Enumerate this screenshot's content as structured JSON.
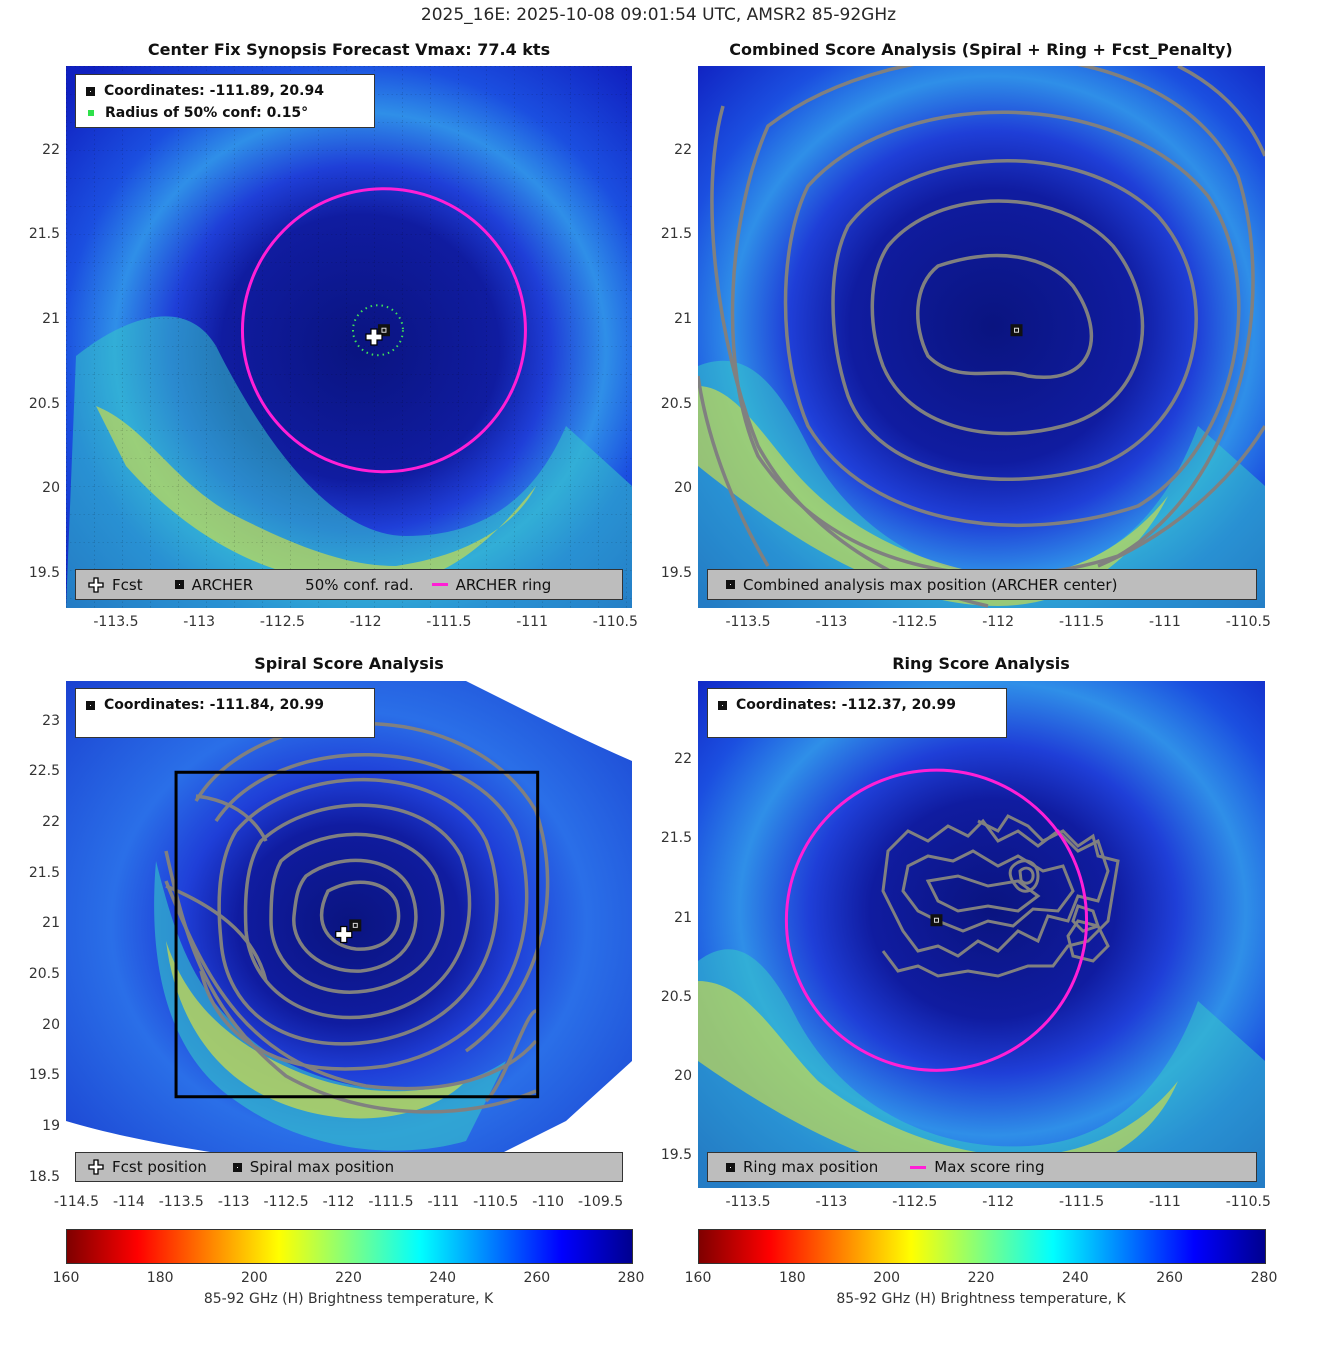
{
  "figure_title": "2025_16E: 2025-10-08 09:01:54 UTC, AMSR2 85-92GHz",
  "panels": {
    "synopsis": {
      "title": "Center Fix Synopsis     Forecast Vmax: 77.4 kts",
      "coords_label": "Coordinates: -111.89, 20.94",
      "radius_label": "Radius of 50% conf: 0.15°",
      "legend": {
        "fcst": "Fcst",
        "archer": "ARCHER",
        "conf": "50% conf. rad.",
        "ring": "ARCHER ring"
      },
      "x_ticks": [
        "-113.5",
        "-113",
        "-112.5",
        "-112",
        "-111.5",
        "-111",
        "-110.5"
      ],
      "y_ticks": [
        "22",
        "21.5",
        "21",
        "20.5",
        "20",
        "19.5"
      ]
    },
    "combined": {
      "title": "Combined Score Analysis (Spiral + Ring + Fcst_Penalty)",
      "legend": {
        "max": "Combined analysis max position (ARCHER center)"
      },
      "x_ticks": [
        "-113.5",
        "-113",
        "-112.5",
        "-112",
        "-111.5",
        "-111",
        "-110.5"
      ],
      "y_ticks": [
        "22",
        "21.5",
        "21",
        "20.5",
        "20",
        "19.5"
      ]
    },
    "spiral": {
      "title": "Spiral Score Analysis",
      "coords_label": "Coordinates: -111.84, 20.99",
      "legend": {
        "fcst": "Fcst position",
        "max": "Spiral max position"
      },
      "x_ticks": [
        "-114.5",
        "-114",
        "-113.5",
        "-113",
        "-112.5",
        "-112",
        "-111.5",
        "-111",
        "-110.5",
        "-110",
        "-109.5"
      ],
      "y_ticks": [
        "23",
        "22.5",
        "22",
        "21.5",
        "21",
        "20.5",
        "20",
        "19.5",
        "19",
        "18.5"
      ]
    },
    "ring": {
      "title": "Ring Score Analysis",
      "coords_label": "Coordinates: -112.37, 20.99",
      "legend": {
        "max": "Ring max position",
        "ring": "Max score ring"
      },
      "x_ticks": [
        "-113.5",
        "-113",
        "-112.5",
        "-112",
        "-111.5",
        "-111",
        "-110.5"
      ],
      "y_ticks": [
        "22",
        "21.5",
        "21",
        "20.5",
        "20",
        "19.5"
      ]
    }
  },
  "colorbar": {
    "ticks": [
      "160",
      "180",
      "200",
      "220",
      "240",
      "260",
      "280"
    ],
    "label": "85-92 GHz (H) Brightness temperature, K"
  },
  "chart_data": [
    {
      "type": "heatmap",
      "title": "Center Fix Synopsis",
      "forecast_vmax_kts": 77.4,
      "xlim": [
        -113.8,
        -110.4
      ],
      "ylim": [
        19.3,
        22.5
      ],
      "archer_center": {
        "lon": -111.89,
        "lat": 20.94
      },
      "fcst_position": {
        "lon": -111.95,
        "lat": 20.9
      },
      "conf_radius_deg": 0.15,
      "archer_ring": {
        "lon": -111.89,
        "lat": 20.94,
        "radius_deg": 0.85
      }
    },
    {
      "type": "heatmap",
      "title": "Combined Score Analysis (Spiral + Ring + Fcst_Penalty)",
      "xlim": [
        -113.8,
        -110.4
      ],
      "ylim": [
        19.3,
        22.5
      ],
      "max_position": {
        "lon": -111.89,
        "lat": 20.94
      }
    },
    {
      "type": "heatmap",
      "title": "Spiral Score Analysis",
      "xlim": [
        -114.6,
        -109.2
      ],
      "ylim": [
        18.4,
        23.4
      ],
      "max_position": {
        "lon": -111.84,
        "lat": 20.99
      },
      "fcst_position": {
        "lon": -111.95,
        "lat": 20.9
      },
      "search_box": {
        "lon": [
          -113.55,
          -110.1
        ],
        "lat": [
          19.3,
          22.5
        ]
      }
    },
    {
      "type": "heatmap",
      "title": "Ring Score Analysis",
      "xlim": [
        -113.8,
        -110.4
      ],
      "ylim": [
        19.3,
        22.5
      ],
      "max_position": {
        "lon": -112.37,
        "lat": 20.99
      },
      "max_score_ring": {
        "lon": -112.37,
        "lat": 20.99,
        "radius_deg": 0.9
      }
    },
    {
      "type": "colorbar",
      "vmin": 160,
      "vmax": 280,
      "colors": [
        "#7f0000",
        "#ff0000",
        "#ff8000",
        "#ffff00",
        "#80ff80",
        "#00ffff",
        "#0080ff",
        "#0000ff",
        "#00008f"
      ]
    }
  ]
}
